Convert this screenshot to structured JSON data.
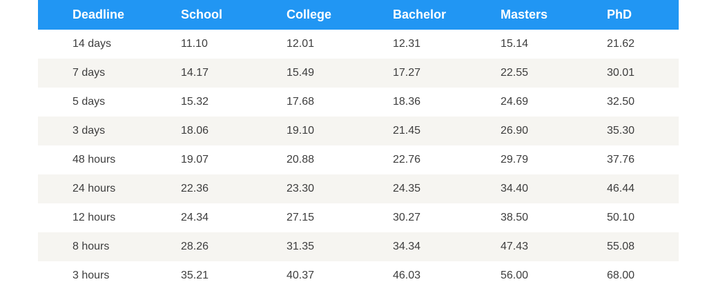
{
  "colors": {
    "header_bg": "#2196f3",
    "header_text": "#ffffff",
    "stripe_bg": "#f6f5f1",
    "cell_text": "#3d3d3d",
    "page_bg": "#ffffff"
  },
  "table": {
    "columns": [
      "Deadline",
      "School",
      "College",
      "Bachelor",
      "Masters",
      "PhD"
    ],
    "rows": [
      {
        "deadline": "14 days",
        "values": [
          "11.10",
          "12.01",
          "12.31",
          "15.14",
          "21.62"
        ]
      },
      {
        "deadline": "7 days",
        "values": [
          "14.17",
          "15.49",
          "17.27",
          "22.55",
          "30.01"
        ]
      },
      {
        "deadline": "5 days",
        "values": [
          "15.32",
          "17.68",
          "18.36",
          "24.69",
          "32.50"
        ]
      },
      {
        "deadline": "3 days",
        "values": [
          "18.06",
          "19.10",
          "21.45",
          "26.90",
          "35.30"
        ]
      },
      {
        "deadline": "48 hours",
        "values": [
          "19.07",
          "20.88",
          "22.76",
          "29.79",
          "37.76"
        ]
      },
      {
        "deadline": "24 hours",
        "values": [
          "22.36",
          "23.30",
          "24.35",
          "34.40",
          "46.44"
        ]
      },
      {
        "deadline": "12 hours",
        "values": [
          "24.34",
          "27.15",
          "30.27",
          "38.50",
          "50.10"
        ]
      },
      {
        "deadline": "8 hours",
        "values": [
          "28.26",
          "31.35",
          "34.34",
          "47.43",
          "55.08"
        ]
      },
      {
        "deadline": "3 hours",
        "values": [
          "35.21",
          "40.37",
          "46.03",
          "56.00",
          "68.00"
        ]
      }
    ]
  },
  "chart_data": {
    "type": "table",
    "title": "",
    "columns": [
      "Deadline",
      "School",
      "College",
      "Bachelor",
      "Masters",
      "PhD"
    ],
    "rows": [
      [
        "14 days",
        11.1,
        12.01,
        12.31,
        15.14,
        21.62
      ],
      [
        "7 days",
        14.17,
        15.49,
        17.27,
        22.55,
        30.01
      ],
      [
        "5 days",
        15.32,
        17.68,
        18.36,
        24.69,
        32.5
      ],
      [
        "3 days",
        18.06,
        19.1,
        21.45,
        26.9,
        35.3
      ],
      [
        "48 hours",
        19.07,
        20.88,
        22.76,
        29.79,
        37.76
      ],
      [
        "24 hours",
        22.36,
        23.3,
        24.35,
        34.4,
        46.44
      ],
      [
        "12 hours",
        24.34,
        27.15,
        30.27,
        38.5,
        50.1
      ],
      [
        "8 hours",
        28.26,
        31.35,
        34.34,
        47.43,
        55.08
      ],
      [
        "3 hours",
        35.21,
        40.37,
        46.03,
        56.0,
        68.0
      ]
    ],
    "layout": {
      "header_style": "blue bar, white bold text, left-aligned",
      "row_striping": "odd rows white, even rows light warm gray",
      "grid": false,
      "legend": false
    }
  }
}
